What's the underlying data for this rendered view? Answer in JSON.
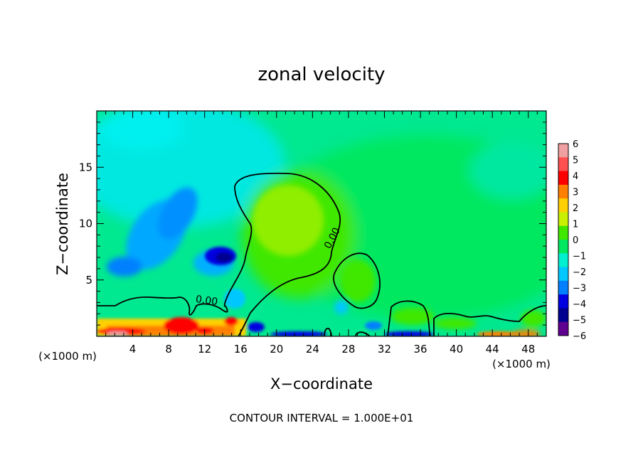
{
  "chart_data": {
    "type": "heatmap",
    "title": "zonal velocity",
    "xlabel": "X−coordinate",
    "ylabel": "Z−coordinate",
    "x_unit_left": "(×1000 m)",
    "x_unit_right": "(×1000 m)",
    "footer": "CONTOUR INTERVAL = 1.000E+01",
    "xlim": [
      0,
      50
    ],
    "ylim": [
      0,
      20
    ],
    "x_ticks": [
      4,
      8,
      12,
      16,
      20,
      24,
      28,
      32,
      36,
      40,
      44,
      48
    ],
    "y_ticks": [
      5,
      10,
      15
    ],
    "contour_labels": [
      "0.00",
      "0.00"
    ],
    "colorbar": {
      "values": [
        6,
        5,
        4,
        3,
        2,
        1,
        0,
        -1,
        -2,
        -3,
        -4,
        -5,
        -6
      ],
      "tick_labels": [
        "6",
        "5",
        "4",
        "3",
        "2",
        "1",
        "0",
        "−1",
        "−2",
        "−3",
        "−4",
        "−5",
        "−6"
      ],
      "colors": [
        "#f0a0a0",
        "#ff5050",
        "#ff0000",
        "#ff8000",
        "#ffd000",
        "#c8f000",
        "#40e800",
        "#00e860",
        "#00f0d0",
        "#00c8ff",
        "#0080ff",
        "#0000e0",
        "#000090",
        "#600090"
      ]
    }
  }
}
